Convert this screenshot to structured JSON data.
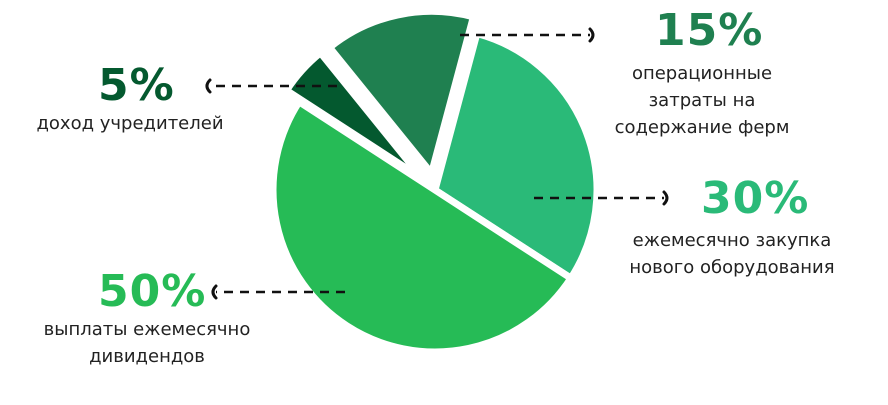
{
  "chart_data": {
    "type": "pie",
    "slices": [
      {
        "value": 15,
        "percent_label": "15%",
        "lines": [
          "операционные",
          "затраты на",
          "содержание ферм"
        ],
        "color": "#1f8050"
      },
      {
        "value": 30,
        "percent_label": "30%",
        "lines": [
          "ежемесячно закупка",
          "нового оборудования"
        ],
        "color": "#2aba78"
      },
      {
        "value": 50,
        "percent_label": "50%",
        "lines": [
          "выплаты ежемесячно",
          "дивидендов"
        ],
        "color": "#26bb56"
      },
      {
        "value": 5,
        "percent_label": "5%",
        "lines": [
          "доход учредителей"
        ],
        "color": "#04592f"
      }
    ],
    "title": "",
    "legend": "none"
  },
  "labels": {
    "s15": {
      "pct": "15%",
      "l1": "операционные",
      "l2": "затраты на",
      "l3": "содержание ферм"
    },
    "s30": {
      "pct": "30%",
      "l1": "ежемесячно закупка",
      "l2": "нового оборудования"
    },
    "s50": {
      "pct": "50%",
      "l1": "выплаты ежемесячно",
      "l2": "дивидендов"
    },
    "s5": {
      "pct": "5%",
      "l1": "доход учредителей"
    }
  },
  "colors": {
    "pct_15": "#1f8050",
    "pct_30": "#2aba78",
    "pct_50": "#26bb56",
    "pct_5": "#04592f",
    "leader": "#111111"
  }
}
